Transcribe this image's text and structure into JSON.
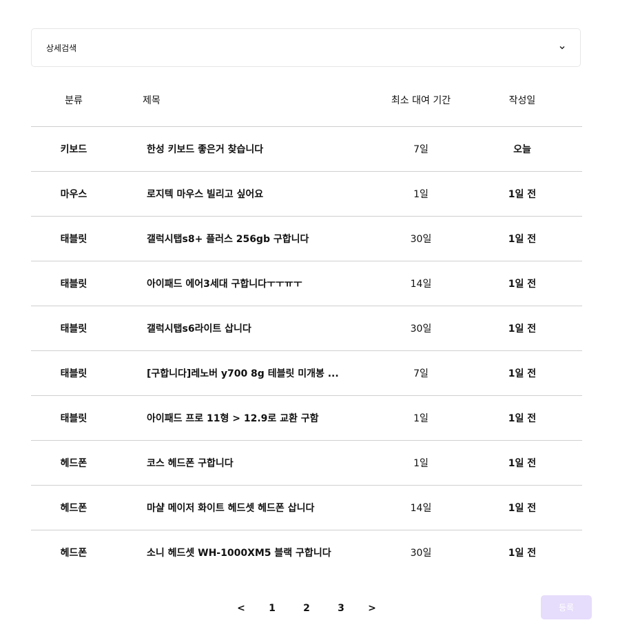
{
  "search": {
    "label": "상세검색"
  },
  "table": {
    "headers": {
      "category": "분류",
      "title": "제목",
      "period": "최소 대여 기간",
      "date": "작성일"
    },
    "rows": [
      {
        "category": "키보드",
        "title": "한성 키보드 좋은거 찾습니다",
        "period": "7일",
        "date": "오늘"
      },
      {
        "category": "마우스",
        "title": "로지텍 마우스 빌리고 싶어요",
        "period": "1일",
        "date": "1일 전"
      },
      {
        "category": "태블릿",
        "title": "갤럭시탭s8+ 플러스 256gb 구합니다",
        "period": "30일",
        "date": "1일 전"
      },
      {
        "category": "태블릿",
        "title": "아이패드 에어3세대 구합니다ㅜㅜㅠㅜ",
        "period": "14일",
        "date": "1일 전"
      },
      {
        "category": "태블릿",
        "title": "갤럭시탭s6라이트 삽니다",
        "period": "30일",
        "date": "1일 전"
      },
      {
        "category": "태블릿",
        "title": "[구합니다]레노버 y700 8g 테블릿 미개봉 ...",
        "period": "7일",
        "date": "1일 전"
      },
      {
        "category": "태블릿",
        "title": "아이패드 프로 11형 > 12.9로 교환 구함",
        "period": "1일",
        "date": "1일 전"
      },
      {
        "category": "헤드폰",
        "title": "코스 헤드폰 구합니다",
        "period": "1일",
        "date": "1일 전"
      },
      {
        "category": "헤드폰",
        "title": "마샬 메이저 화이트 헤드셋 헤드폰 삽니다",
        "period": "14일",
        "date": "1일 전"
      },
      {
        "category": "헤드폰",
        "title": "소니 헤드셋 WH-1000XM5 블랙 구합니다",
        "period": "30일",
        "date": "1일 전"
      }
    ]
  },
  "pagination": {
    "prev": "<",
    "pages": [
      "1",
      "2",
      "3"
    ],
    "next": ">"
  },
  "register": {
    "label": "등록",
    "color": "#e6dcfb"
  }
}
